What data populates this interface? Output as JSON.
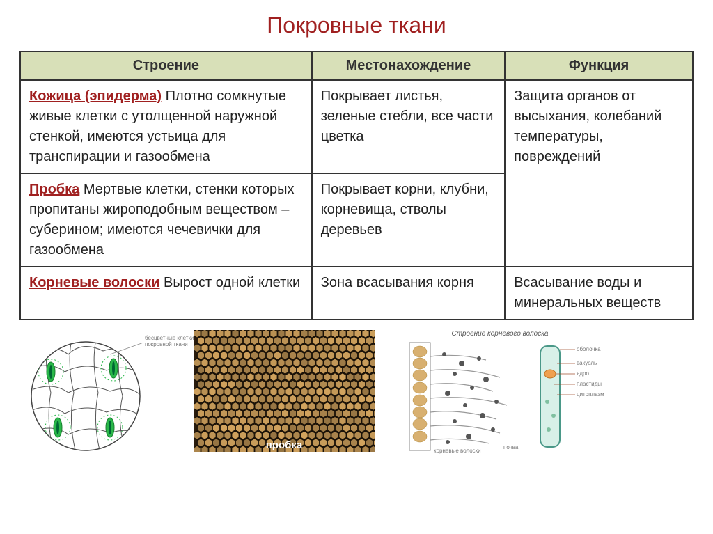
{
  "title": "Покровные ткани",
  "table": {
    "headers": [
      "Строение",
      "Местонахождение",
      "Функция"
    ],
    "rows": [
      {
        "term": "Кожица (эпидерма)",
        "structure_rest": " Плотно сомкнутые живые клетки с утолщенной наружной стенкой, имеются устьица для транспирации и газообмена",
        "location": "Покрывает листья, зеленые стебли, все части цветка",
        "function": "Защита органов от высыхания, колебаний температуры, повреждений",
        "function_rowspan": 2
      },
      {
        "term": "Пробка",
        "structure_rest": " Мертвые клетки, стенки которых пропитаны жироподобным веществом – суберином; имеются чечевички для газообмена",
        "location": "Покрывает корни, клубни, корневища, стволы деревьев"
      },
      {
        "term": "Корневые волоски",
        "structure_rest": " Вырост одной клетки",
        "location": "Зона всасывания корня",
        "function": "Всасывание воды и минеральных веществ"
      }
    ]
  },
  "images": {
    "epidermis_label1": "бесцветные клетки",
    "epidermis_label2": "покровной ткани",
    "cork_label": "пробка",
    "root_title": "Строение корневого волоска",
    "root_labels": [
      "оболочка",
      "вакуоль",
      "ядро",
      "пластиды",
      "цитоплазма",
      "почва",
      "корневые волоски"
    ]
  },
  "colors": {
    "title": "#a02020",
    "header_bg": "#d8e0b8",
    "border": "#333333",
    "term": "#a02020",
    "stomata_green": "#2ab84a",
    "stomata_border": "#1a8030",
    "cork_bg": "#3a2a15",
    "cork_cell": "#c9a268"
  }
}
